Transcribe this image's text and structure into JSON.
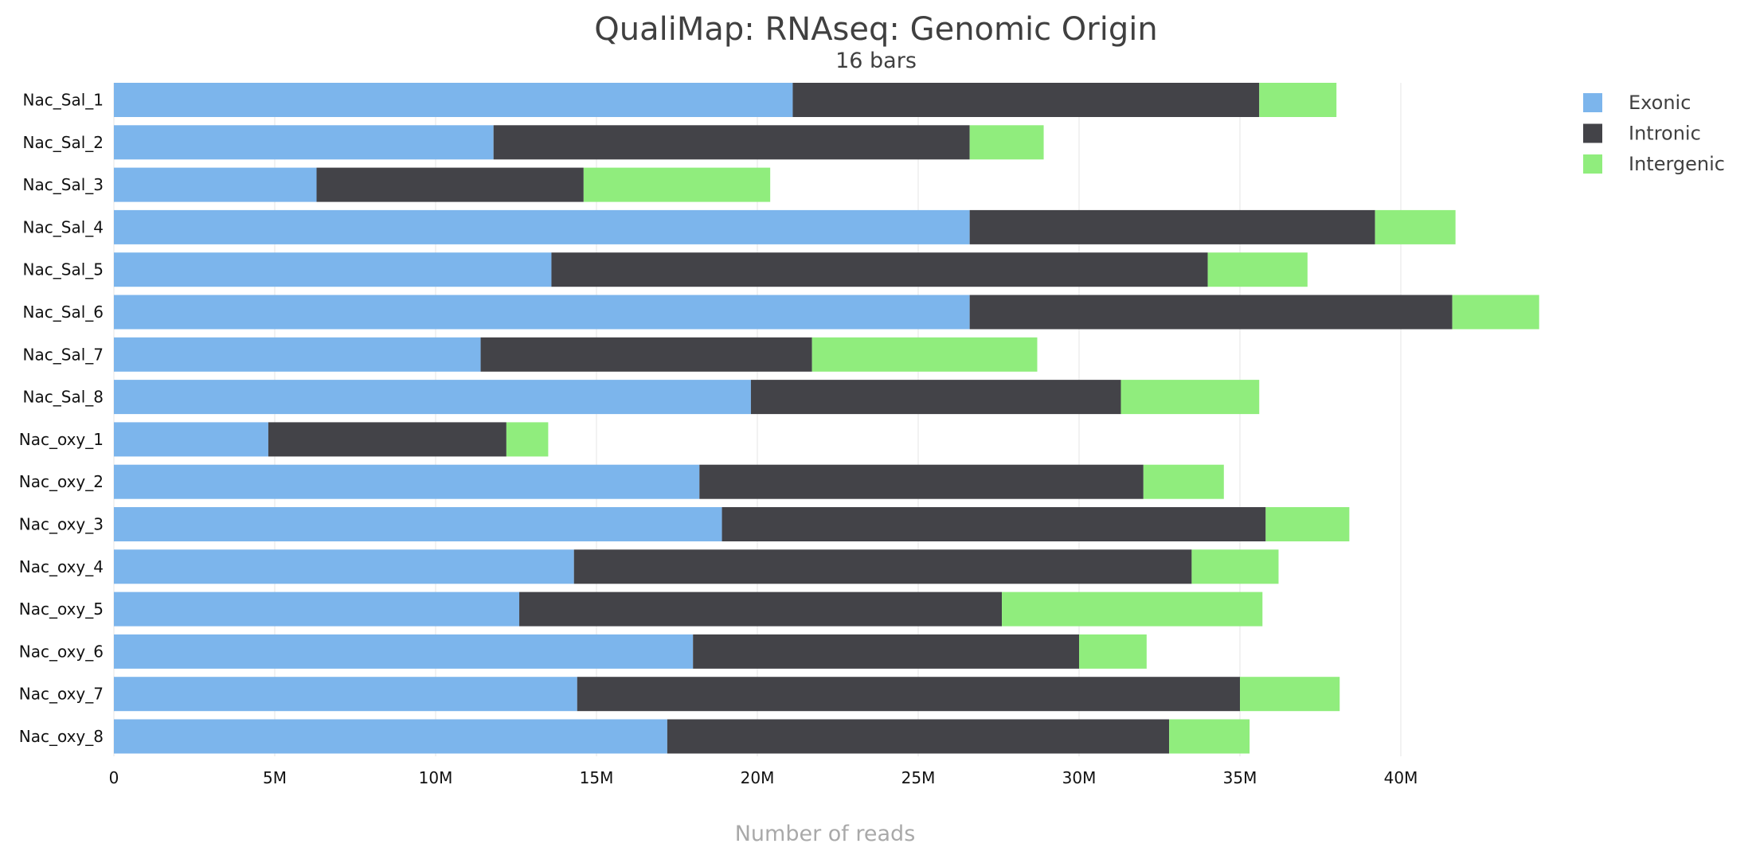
{
  "chart_data": {
    "type": "bar",
    "orientation": "horizontal",
    "stacked": true,
    "title": "QualiMap: RNAseq: Genomic Origin",
    "subtitle": "16 bars",
    "xlabel": "Number of reads",
    "ylabel": "",
    "xlim": [
      0,
      45000000
    ],
    "xticks": [
      {
        "value": 0,
        "label": "0"
      },
      {
        "value": 5000000,
        "label": "5M"
      },
      {
        "value": 10000000,
        "label": "10M"
      },
      {
        "value": 15000000,
        "label": "15M"
      },
      {
        "value": 20000000,
        "label": "20M"
      },
      {
        "value": 25000000,
        "label": "25M"
      },
      {
        "value": 30000000,
        "label": "30M"
      },
      {
        "value": 35000000,
        "label": "35M"
      },
      {
        "value": 40000000,
        "label": "40M"
      }
    ],
    "grid": true,
    "legend_position": "top-right",
    "categories": [
      "Nac_Sal_1",
      "Nac_Sal_2",
      "Nac_Sal_3",
      "Nac_Sal_4",
      "Nac_Sal_5",
      "Nac_Sal_6",
      "Nac_Sal_7",
      "Nac_Sal_8",
      "Nac_oxy_1",
      "Nac_oxy_2",
      "Nac_oxy_3",
      "Nac_oxy_4",
      "Nac_oxy_5",
      "Nac_oxy_6",
      "Nac_oxy_7",
      "Nac_oxy_8"
    ],
    "series": [
      {
        "name": "Exonic",
        "color": "#7cb5ec",
        "values": [
          21100000,
          11800000,
          6300000,
          26600000,
          13600000,
          26600000,
          11400000,
          19800000,
          4800000,
          18200000,
          18900000,
          14300000,
          12600000,
          18000000,
          14400000,
          17200000
        ]
      },
      {
        "name": "Intronic",
        "color": "#434348",
        "values": [
          14500000,
          14800000,
          8300000,
          12600000,
          20400000,
          15000000,
          10300000,
          11500000,
          7400000,
          13800000,
          16900000,
          19200000,
          15000000,
          12000000,
          20600000,
          15600000
        ]
      },
      {
        "name": "Intergenic",
        "color": "#90ed7d",
        "values": [
          2400000,
          2300000,
          5800000,
          2500000,
          3100000,
          2700000,
          7000000,
          4300000,
          1300000,
          2500000,
          2600000,
          2700000,
          8100000,
          2100000,
          3100000,
          2500000
        ]
      }
    ]
  }
}
